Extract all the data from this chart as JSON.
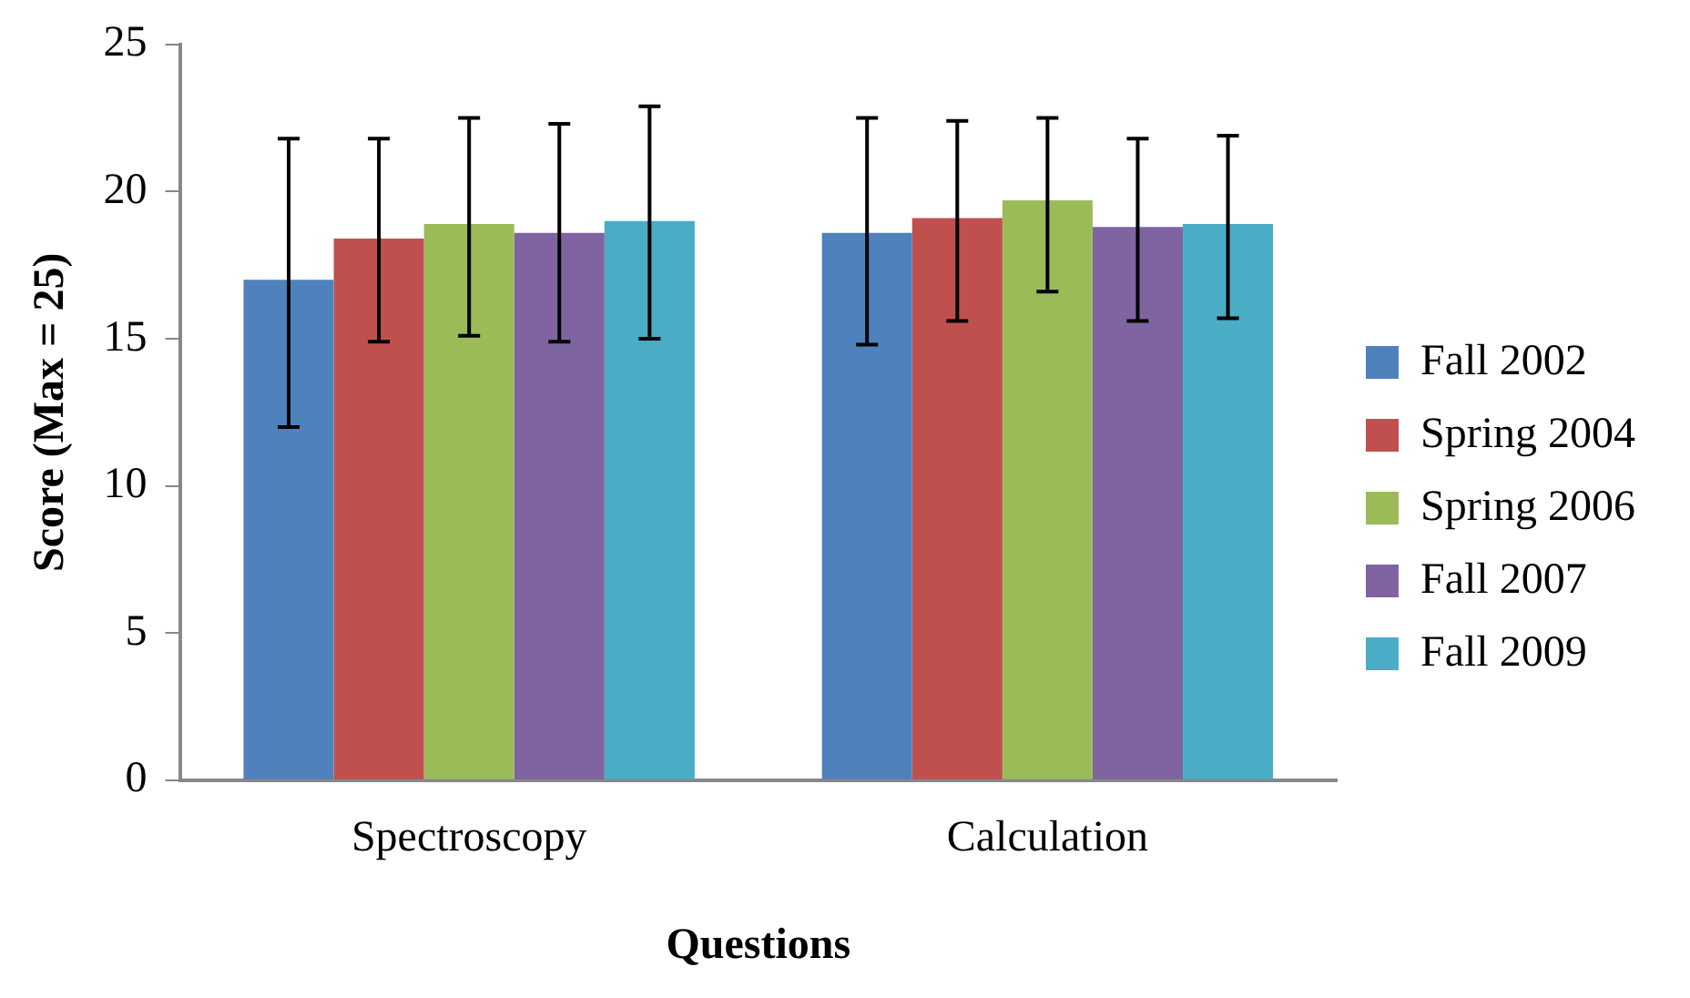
{
  "chart_data": {
    "type": "bar",
    "xlabel": "Questions",
    "ylabel": "Score (Max = 25)",
    "categories": [
      "Spectroscopy",
      "Calculation"
    ],
    "series": [
      {
        "name": "Fall 2002",
        "color": "#4f81bd",
        "values": [
          17.0,
          18.6
        ],
        "errors": [
          [
            12.0,
            21.8
          ],
          [
            14.8,
            22.5
          ]
        ]
      },
      {
        "name": "Spring 2004",
        "color": "#c0504d",
        "values": [
          18.4,
          19.1
        ],
        "errors": [
          [
            14.9,
            21.8
          ],
          [
            15.6,
            22.4
          ]
        ]
      },
      {
        "name": "Spring 2006",
        "color": "#9bbb59",
        "values": [
          18.9,
          19.7
        ],
        "errors": [
          [
            15.1,
            22.5
          ],
          [
            16.6,
            22.5
          ]
        ]
      },
      {
        "name": "Fall 2007",
        "color": "#8064a2",
        "values": [
          18.6,
          18.8
        ],
        "errors": [
          [
            14.9,
            22.3
          ],
          [
            15.6,
            21.8
          ]
        ]
      },
      {
        "name": "Fall 2009",
        "color": "#4bacc6",
        "values": [
          19.0,
          18.9
        ],
        "errors": [
          [
            15.0,
            22.9
          ],
          [
            15.7,
            21.9
          ]
        ]
      }
    ],
    "ylim": [
      0,
      25
    ],
    "yticks": [
      0,
      5,
      10,
      15,
      20,
      25
    ],
    "grid": false,
    "legend": "right"
  }
}
